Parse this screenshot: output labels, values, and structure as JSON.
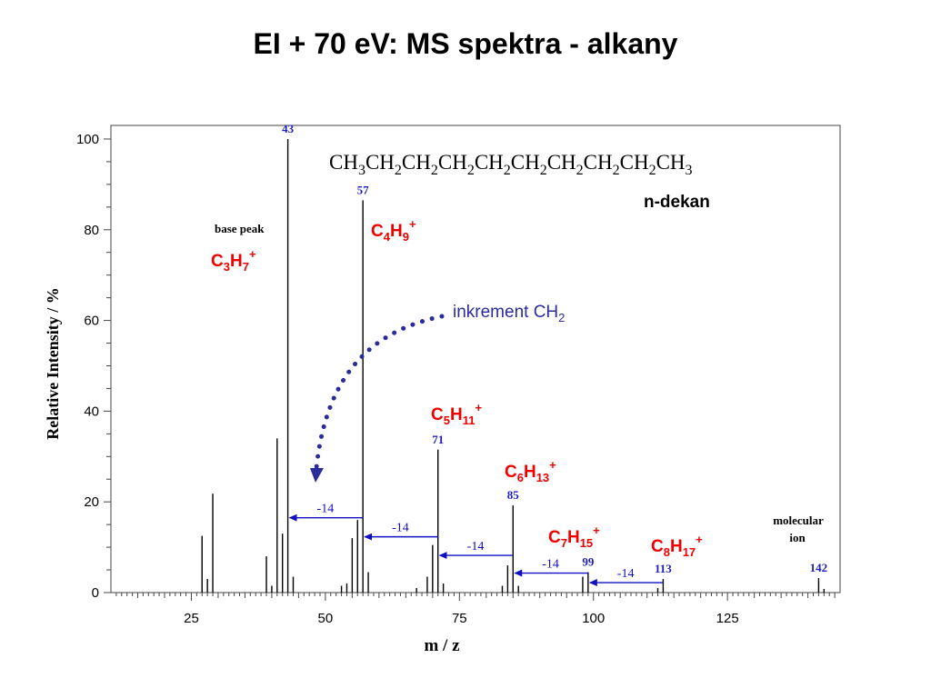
{
  "slide_title": "EI + 70 eV: MS spektra -  alkany",
  "colors": {
    "ion_formula": "#ee0000",
    "peak_label": "#1f1fbf",
    "arrow": "#1010c0",
    "increment": "#2b2b9a"
  },
  "formula": {
    "groups": [
      {
        "base": "CH",
        "sub": "3"
      },
      {
        "base": "CH",
        "sub": "2"
      },
      {
        "base": "CH",
        "sub": "2"
      },
      {
        "base": "CH",
        "sub": "2"
      },
      {
        "base": "CH",
        "sub": "2"
      },
      {
        "base": "CH",
        "sub": "2"
      },
      {
        "base": "CH",
        "sub": "2"
      },
      {
        "base": "CH",
        "sub": "2"
      },
      {
        "base": "CH",
        "sub": "2"
      },
      {
        "base": "CH",
        "sub": "3"
      }
    ]
  },
  "compound_name": "n-dekan",
  "increment_label": {
    "text": "inkrement CH",
    "sub": "2"
  },
  "base_peak_text": "base peak",
  "molecular_ion_text": [
    "molecular",
    "ion"
  ],
  "ions": [
    {
      "c": "3",
      "h": "7",
      "charge": "+"
    },
    {
      "c": "4",
      "h": "9",
      "charge": "+"
    },
    {
      "c": "5",
      "h": "11",
      "charge": "+"
    },
    {
      "c": "6",
      "h": "13",
      "charge": "+"
    },
    {
      "c": "7",
      "h": "15",
      "charge": "+"
    },
    {
      "c": "8",
      "h": "17",
      "charge": "+"
    }
  ],
  "chart_data": {
    "type": "bar",
    "xlabel": "m / z",
    "ylabel": "Relative Intensity / %",
    "xlim": [
      10,
      146
    ],
    "ylim": [
      0,
      103
    ],
    "xticks": [
      25,
      50,
      75,
      100,
      125
    ],
    "yticks": [
      0,
      20,
      40,
      60,
      80,
      100
    ],
    "grid": false,
    "peaks": [
      {
        "mz": 27,
        "intensity": 12.5
      },
      {
        "mz": 28,
        "intensity": 3
      },
      {
        "mz": 29,
        "intensity": 21.8
      },
      {
        "mz": 39,
        "intensity": 8
      },
      {
        "mz": 40,
        "intensity": 1.5
      },
      {
        "mz": 41,
        "intensity": 34
      },
      {
        "mz": 42,
        "intensity": 13
      },
      {
        "mz": 43,
        "intensity": 100
      },
      {
        "mz": 44,
        "intensity": 3.5
      },
      {
        "mz": 53,
        "intensity": 1.5
      },
      {
        "mz": 54,
        "intensity": 2
      },
      {
        "mz": 55,
        "intensity": 12
      },
      {
        "mz": 56,
        "intensity": 16
      },
      {
        "mz": 57,
        "intensity": 86.5
      },
      {
        "mz": 58,
        "intensity": 4.5
      },
      {
        "mz": 67,
        "intensity": 1
      },
      {
        "mz": 69,
        "intensity": 3.5
      },
      {
        "mz": 70,
        "intensity": 10.5
      },
      {
        "mz": 71,
        "intensity": 31.5
      },
      {
        "mz": 72,
        "intensity": 2
      },
      {
        "mz": 83,
        "intensity": 1.5
      },
      {
        "mz": 84,
        "intensity": 6
      },
      {
        "mz": 85,
        "intensity": 19.2
      },
      {
        "mz": 86,
        "intensity": 1.5
      },
      {
        "mz": 98,
        "intensity": 3.5
      },
      {
        "mz": 99,
        "intensity": 4.5
      },
      {
        "mz": 112,
        "intensity": 1
      },
      {
        "mz": 113,
        "intensity": 3
      },
      {
        "mz": 142,
        "intensity": 3.2
      },
      {
        "mz": 143,
        "intensity": 0.8
      }
    ],
    "peak_labels": [
      {
        "mz": 43,
        "text": "43"
      },
      {
        "mz": 57,
        "text": "57"
      },
      {
        "mz": 71,
        "text": "71"
      },
      {
        "mz": 85,
        "text": "85"
      },
      {
        "mz": 99,
        "text": "99"
      },
      {
        "mz": 113,
        "text": "113"
      },
      {
        "mz": 142,
        "text": "142"
      }
    ],
    "step_arrows": [
      {
        "from": 57,
        "to": 43,
        "y": 16.5,
        "label": "-14"
      },
      {
        "from": 71,
        "to": 57,
        "y": 12.3,
        "label": "-14"
      },
      {
        "from": 85,
        "to": 71,
        "y": 8.2,
        "label": "-14"
      },
      {
        "from": 99,
        "to": 85,
        "y": 4.3,
        "label": "-14"
      },
      {
        "from": 113,
        "to": 99,
        "y": 2.2,
        "label": "-14"
      }
    ]
  }
}
